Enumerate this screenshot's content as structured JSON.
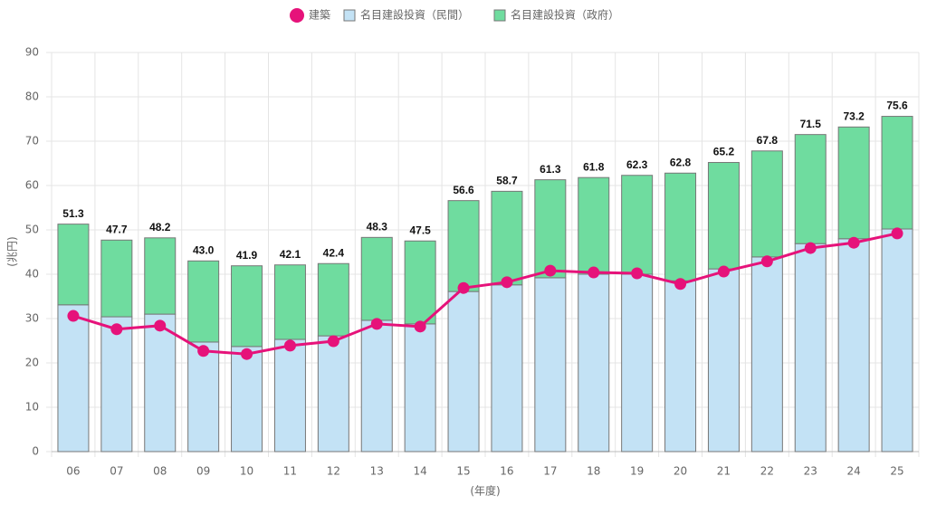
{
  "chart_data": {
    "type": "bar",
    "stacked": true,
    "categories": [
      "06",
      "07",
      "08",
      "09",
      "10",
      "11",
      "12",
      "13",
      "14",
      "15",
      "16",
      "17",
      "18",
      "19",
      "20",
      "21",
      "22",
      "23",
      "24",
      "25"
    ],
    "series": [
      {
        "name": "建築",
        "type": "line",
        "color": "#e6127a",
        "values": [
          30.6,
          27.6,
          28.4,
          22.7,
          22.0,
          23.9,
          24.9,
          28.8,
          28.2,
          36.9,
          38.2,
          40.8,
          40.4,
          40.2,
          37.8,
          40.6,
          42.9,
          45.9,
          47.1,
          49.2
        ]
      },
      {
        "name": "名目建設投資（民間）",
        "type": "bar",
        "color": "#c3e2f5",
        "values": [
          33.1,
          30.4,
          31.0,
          24.7,
          23.7,
          25.3,
          26.1,
          29.6,
          28.8,
          36.1,
          37.6,
          39.2,
          40.0,
          40.0,
          38.5,
          41.2,
          43.9,
          46.9,
          48.0,
          50.2
        ]
      },
      {
        "name": "名目建設投資（政府）",
        "type": "bar",
        "color": "#6fdc9f",
        "values": [
          18.2,
          17.3,
          17.2,
          18.3,
          18.2,
          16.8,
          16.3,
          18.7,
          18.7,
          20.5,
          21.1,
          22.1,
          21.8,
          22.3,
          24.3,
          24.0,
          23.9,
          24.6,
          25.2,
          25.4
        ]
      }
    ],
    "totals": {
      "values": [
        51.3,
        47.7,
        48.2,
        43.0,
        41.9,
        42.1,
        42.4,
        48.3,
        47.5,
        56.6,
        58.7,
        61.3,
        61.8,
        62.3,
        62.8,
        65.2,
        67.8,
        71.5,
        73.2,
        75.6
      ],
      "value_labels": [
        "51.3",
        "47.7",
        "48.2",
        "43.0",
        "41.9",
        "42.1",
        "42.4",
        "48.3",
        "47.5",
        "56.6",
        "58.7",
        "61.3",
        "61.8",
        "62.3",
        "62.8",
        "65.2",
        "67.8",
        "71.5",
        "73.2",
        "75.6"
      ]
    },
    "y_label": "(兆円)",
    "x_label": "(年度)",
    "ylim": [
      0,
      90
    ],
    "yticks": [
      0,
      10,
      20,
      30,
      40,
      50,
      60,
      70,
      80,
      90
    ],
    "grid": true
  }
}
